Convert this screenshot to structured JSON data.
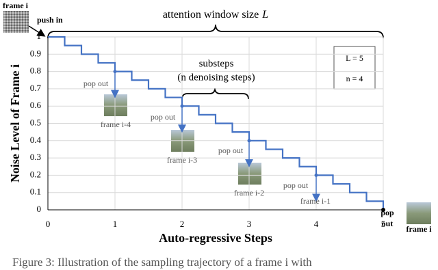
{
  "chart_data": {
    "type": "line",
    "x_label": "Auto-regressive Steps",
    "y_label": "Noise Level of Frame i",
    "xlim": [
      0,
      5
    ],
    "xticks": [
      0,
      1,
      2,
      3,
      4,
      5
    ],
    "ylim": [
      0,
      1
    ],
    "yticks": [
      0,
      0.1,
      0.2,
      0.3,
      0.4,
      0.5,
      0.6,
      0.7,
      0.8,
      0.9,
      1
    ],
    "grid": true,
    "series": [
      {
        "color": "#4472c4",
        "x": [
          0,
          0.25,
          0.25,
          0.5,
          0.5,
          0.75,
          0.75,
          1,
          1,
          1.25,
          1.25,
          1.5,
          1.5,
          1.75,
          1.75,
          2,
          2,
          2.25,
          2.25,
          2.5,
          2.5,
          2.75,
          2.75,
          3,
          3,
          3.25,
          3.25,
          3.5,
          3.5,
          3.75,
          3.75,
          4,
          4,
          4.25,
          4.25,
          4.5,
          4.5,
          4.75,
          4.75,
          5,
          5
        ],
        "values": [
          1,
          1,
          0.95,
          0.95,
          0.9,
          0.9,
          0.85,
          0.85,
          0.8,
          0.8,
          0.75,
          0.75,
          0.7,
          0.7,
          0.65,
          0.65,
          0.6,
          0.6,
          0.55,
          0.55,
          0.5,
          0.5,
          0.45,
          0.45,
          0.4,
          0.4,
          0.35,
          0.35,
          0.3,
          0.3,
          0.25,
          0.25,
          0.2,
          0.2,
          0.15,
          0.15,
          0.1,
          0.1,
          0.05,
          0.05,
          0
        ]
      },
      {
        "color": "#4472c4",
        "x": [
          1,
          2,
          3,
          4,
          5
        ],
        "values": [
          0.8,
          0.6,
          0.4,
          0.2,
          0
        ]
      }
    ],
    "annotations": {
      "frame_in": "frame i",
      "push_in": "push in",
      "window": "attention window size",
      "window_symbol": "L",
      "substeps": "substeps",
      "substeps_detail": "(n denoising steps)",
      "settings": [
        "L = 5",
        "n = 4"
      ],
      "pop_out": [
        "pop out",
        "pop out",
        "pop out",
        "pop out"
      ],
      "frames_out": [
        "frame i-4",
        "frame i-3",
        "frame i-2",
        "frame i-1"
      ],
      "final_pop": [
        "pop",
        "out"
      ],
      "final_frame": "frame i"
    }
  },
  "caption": "Figure 3: Illustration of the sampling trajectory of a frame i with"
}
